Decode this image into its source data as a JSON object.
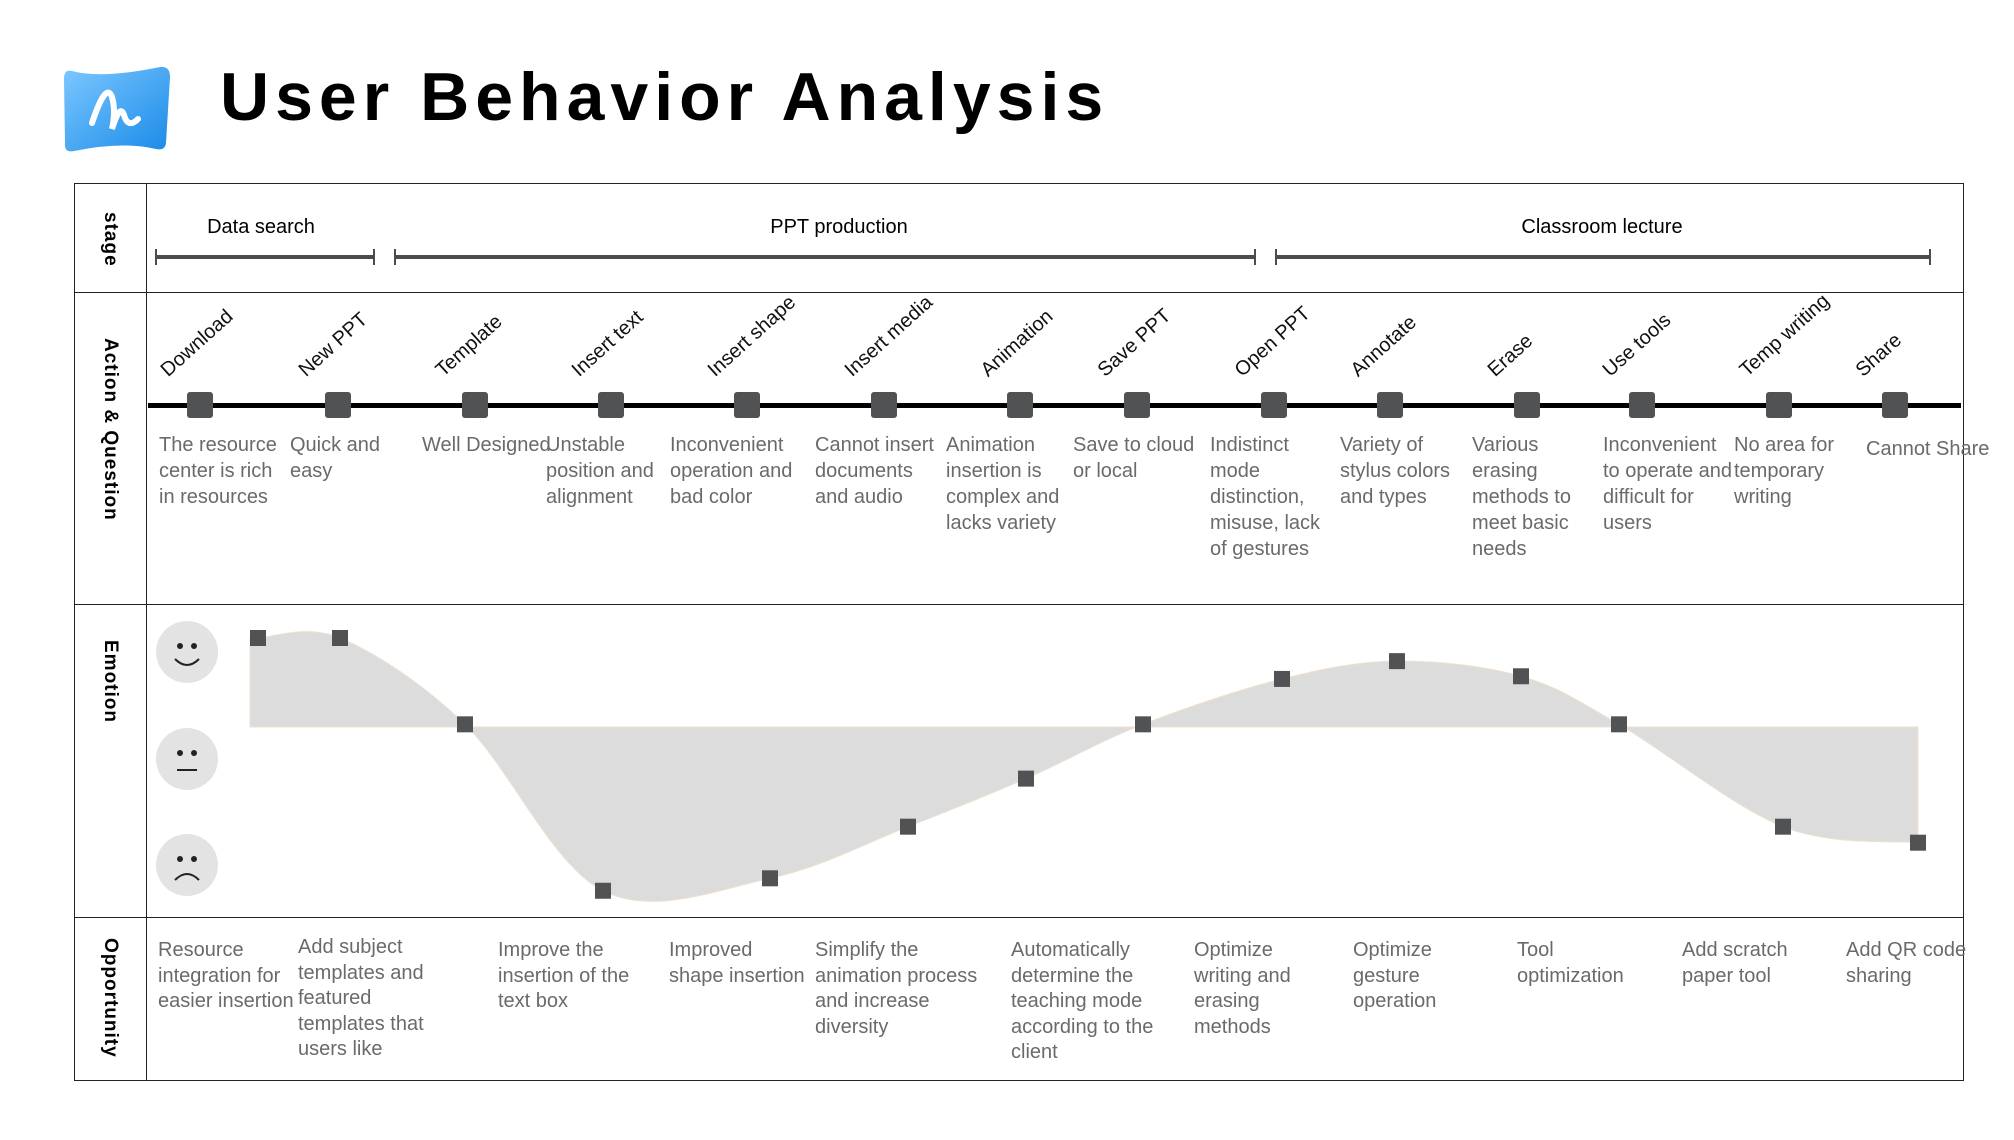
{
  "title": "User Behavior Analysis",
  "logo_icon": "blue-wave-app-logo",
  "row_labels": {
    "stage": "stage",
    "action": "Action & Question",
    "emotion": "Emotion",
    "opportunity": "Opportunity"
  },
  "stages": [
    {
      "label": "Data search"
    },
    {
      "label": "PPT production"
    },
    {
      "label": "Classroom lecture"
    }
  ],
  "actions": [
    {
      "label": "Download",
      "question": "The resource center is rich in resources"
    },
    {
      "label": "New PPT",
      "question": "Quick and easy"
    },
    {
      "label": "Template",
      "question": "Well Designed"
    },
    {
      "label": "Insert text",
      "question": "Unstable position and alignment"
    },
    {
      "label": "Insert shape",
      "question": "Inconvenient operation and bad color"
    },
    {
      "label": "Insert media",
      "question": "Cannot insert documents and audio"
    },
    {
      "label": "Animation",
      "question": "Animation insertion is complex and lacks variety"
    },
    {
      "label": "Save PPT",
      "question": "Save to cloud or local"
    },
    {
      "label": "Open PPT",
      "question": "Indistinct mode distinction, misuse, lack of gestures"
    },
    {
      "label": "Annotate",
      "question": "Variety of stylus colors and types"
    },
    {
      "label": "Erase",
      "question": "Various erasing methods to meet basic needs"
    },
    {
      "label": "Use tools",
      "question": "Inconvenient to operate and difficult for users"
    },
    {
      "label": "Temp writing",
      "question": "No area for temporary writing"
    },
    {
      "label": "Share",
      "question": "Cannot Share"
    }
  ],
  "emotion": {
    "faces": [
      "happy-face-icon",
      "neutral-face-icon",
      "sad-face-icon"
    ],
    "values": [
      1.0,
      1.0,
      0.03,
      -1.84,
      -1.7,
      -1.12,
      -0.58,
      0.03,
      0.54,
      0.74,
      0.57,
      0.03,
      -1.12,
      -1.3
    ],
    "fill_color": "#dcdcdc",
    "marker_color": "#505254"
  },
  "opportunities": [
    "Resource integration for easier insertion",
    "Add subject templates and featured templates that users like",
    "Improve the insertion of the text box",
    "Improved shape insertion",
    "Simplify the animation process and increase diversity",
    "Automatically determine the teaching mode according to the client",
    "Optimize writing and erasing methods",
    "Optimize gesture operation",
    "Tool optimization",
    "Add scratch paper tool",
    "Add QR code sharing"
  ]
}
